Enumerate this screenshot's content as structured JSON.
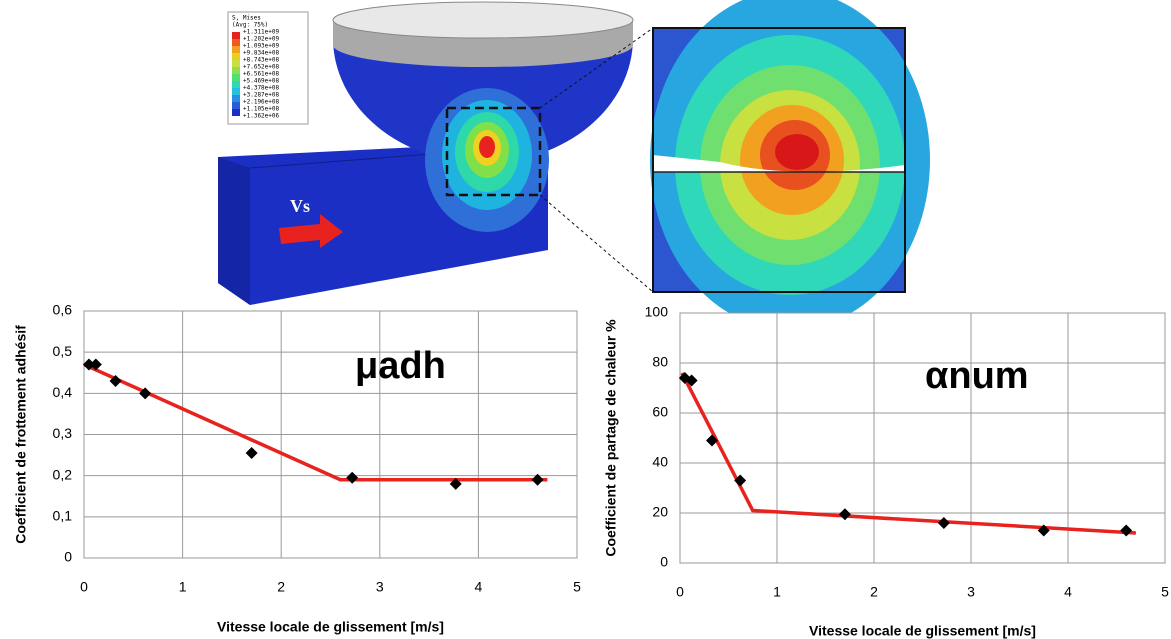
{
  "illustration": {
    "legend_title": [
      "S, Mises",
      "(Avg: 75%)"
    ],
    "legend_values": [
      "+1.311e+09",
      "+1.202e+09",
      "+1.093e+09",
      "+9.834e+08",
      "+8.743e+08",
      "+7.652e+08",
      "+6.561e+08",
      "+5.469e+08",
      "+4.378e+08",
      "+3.287e+08",
      "+2.196e+08",
      "+1.105e+08",
      "+1.362e+06"
    ],
    "arrow_label": "Vs"
  },
  "chart_data": [
    {
      "type": "scatter",
      "annotation": "μadh",
      "x_label": "Vitesse locale de glissement [m/s]",
      "y_label": "Coefficient de frottement adhésif",
      "xlim": [
        0,
        5
      ],
      "xticks": [
        0,
        1,
        2,
        3,
        4,
        5
      ],
      "ylim": [
        0,
        0.6
      ],
      "yticks": [
        0,
        {
          "value": 0.1,
          "label": "0,1"
        },
        {
          "value": 0.2,
          "label": "0,2"
        },
        {
          "value": 0.3,
          "label": "0,3"
        },
        {
          "value": 0.4,
          "label": "0,4"
        },
        {
          "value": 0.5,
          "label": "0,5"
        },
        {
          "value": 0.6,
          "label": "0,6"
        }
      ],
      "grid": true,
      "series": [
        {
          "type": "scatter",
          "color": "#000000",
          "x": [
            0.05,
            0.12,
            0.32,
            0.62,
            1.7,
            2.72,
            3.77,
            4.6
          ],
          "values": [
            0.47,
            0.47,
            0.43,
            0.4,
            0.255,
            0.195,
            0.18,
            0.19
          ]
        },
        {
          "type": "line",
          "color": "#e8231f",
          "x": [
            0,
            2.6,
            4.7
          ],
          "values": [
            0.47,
            0.19,
            0.19
          ]
        }
      ]
    },
    {
      "type": "scatter",
      "annotation": "αnum",
      "x_label": "Vitesse locale de glissement [m/s]",
      "y_label": "Coefficient de partage de chaleur %",
      "xlim": [
        0,
        5
      ],
      "xticks": [
        0,
        1,
        2,
        3,
        4,
        5
      ],
      "ylim": [
        0,
        100
      ],
      "yticks": [
        0,
        20,
        40,
        60,
        80,
        100
      ],
      "grid": true,
      "series": [
        {
          "type": "scatter",
          "color": "#000000",
          "x": [
            0.05,
            0.12,
            0.33,
            0.62,
            1.7,
            2.72,
            3.75,
            4.6
          ],
          "values": [
            74,
            73,
            49,
            33,
            19.5,
            16,
            13,
            13
          ]
        },
        {
          "type": "line",
          "color": "#e8231f",
          "x": [
            0.02,
            0.75,
            4.7
          ],
          "values": [
            76,
            21,
            12
          ]
        }
      ]
    }
  ]
}
